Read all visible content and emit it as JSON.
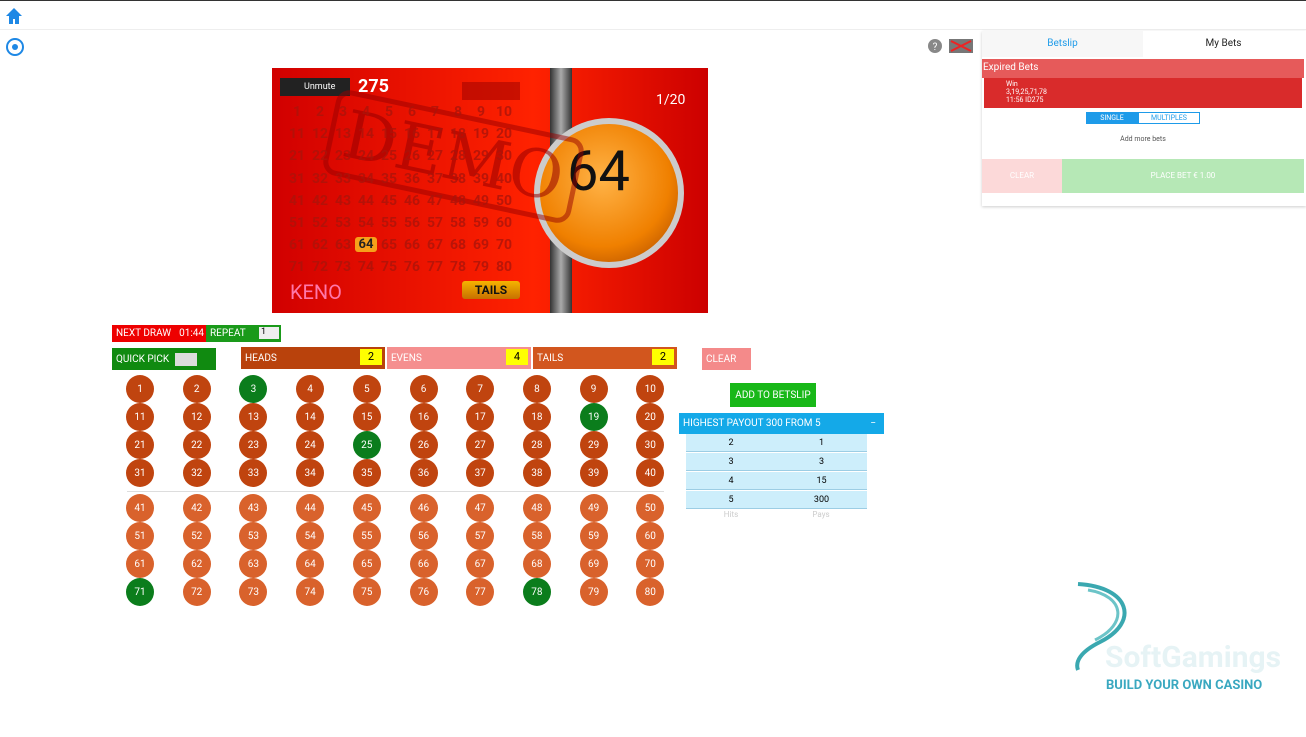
{
  "game": {
    "unmute": "Unmute",
    "draw_id": "275",
    "counter": "1/20",
    "watermark": "DEMO",
    "ball": "64",
    "logo": "KENO",
    "result": "TAILS"
  },
  "controls": {
    "next_draw": "NEXT DRAW",
    "countdown": "01:44",
    "repeat": "REPEAT",
    "repeat_value": "1",
    "quick_pick": "QUICK PICK",
    "bets": [
      {
        "label": "HEADS",
        "count": "2"
      },
      {
        "label": "EVENS",
        "count": "4"
      },
      {
        "label": "TAILS",
        "count": "2"
      }
    ],
    "clear": "CLEAR",
    "add": "ADD TO BETSLIP"
  },
  "board": {
    "numbers": [
      1,
      2,
      3,
      4,
      5,
      6,
      7,
      8,
      9,
      10,
      11,
      12,
      13,
      14,
      15,
      16,
      17,
      18,
      19,
      20,
      21,
      22,
      23,
      24,
      25,
      26,
      27,
      28,
      29,
      30,
      31,
      32,
      33,
      34,
      35,
      36,
      37,
      38,
      39,
      40,
      41,
      42,
      43,
      44,
      45,
      46,
      47,
      48,
      49,
      50,
      51,
      52,
      53,
      54,
      55,
      56,
      57,
      58,
      59,
      60,
      61,
      62,
      63,
      64,
      65,
      66,
      67,
      68,
      69,
      70,
      71,
      72,
      73,
      74,
      75,
      76,
      77,
      78,
      79,
      80
    ],
    "selected": [
      3,
      19,
      25,
      71,
      78
    ],
    "drawn": [
      64
    ]
  },
  "payout": {
    "title": "HIGHEST PAYOUT 300 FROM 5",
    "rows": [
      [
        "2",
        "1"
      ],
      [
        "3",
        "3"
      ],
      [
        "4",
        "15"
      ],
      [
        "5",
        "300"
      ]
    ],
    "columns": [
      "Hits",
      "Pays"
    ]
  },
  "betslip": {
    "tabs": [
      "Betslip",
      "My Bets"
    ],
    "section": "Expired Bets",
    "bet_status": "Win",
    "bet_numbers": "3,19,25,71,78",
    "bet_meta": "11:56 ID275",
    "modes": [
      "SINGLE",
      "MULTIPLES"
    ],
    "hint": "Add more bets",
    "clear": "CLEAR",
    "place": "PLACE BET € 1.00"
  },
  "branding": {
    "name": "SoftGamings",
    "tagline": "BUILD YOUR OWN CASINO"
  }
}
